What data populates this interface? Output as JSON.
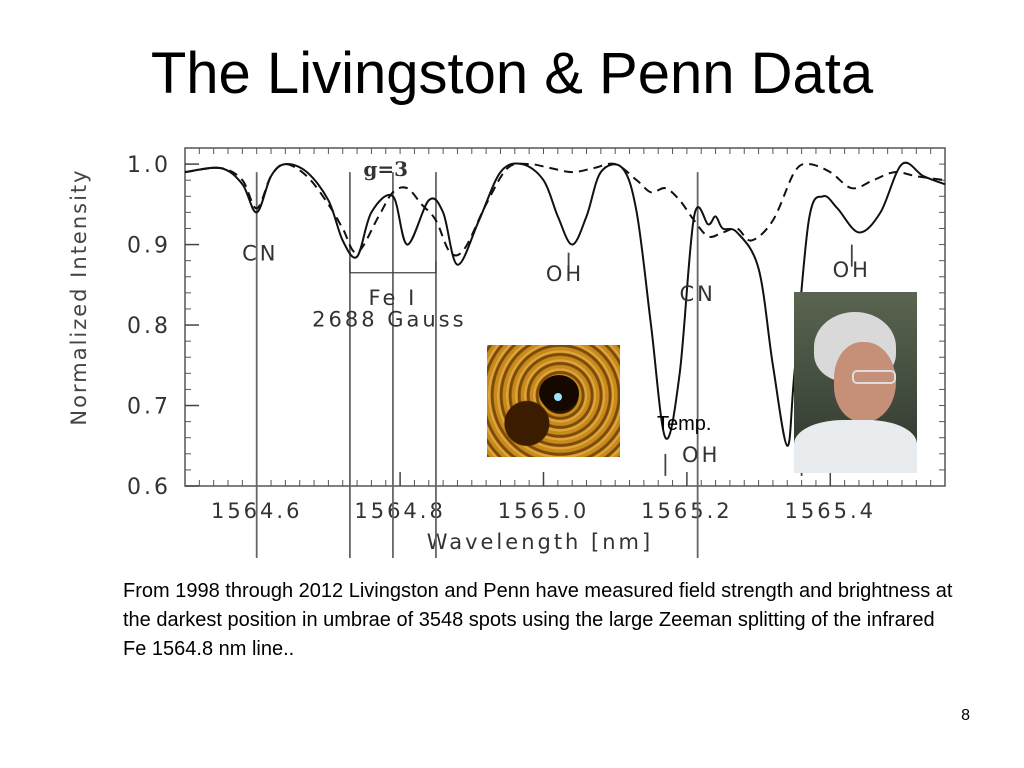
{
  "slide": {
    "title": "The Livingston & Penn Data",
    "caption": "From 1998 through 2012 Livingston and Penn have measured field strength and brightness at the darkest position in umbrae of 3548 spots using the large Zeeman splitting of the infrared Fe 1564.8 nm line..",
    "page_number": "8",
    "temp_label": "Temp."
  },
  "chart_data": {
    "type": "line",
    "xlabel": "Wavelength [nm]",
    "ylabel": "Normalized Intensity",
    "xlim": [
      1564.5,
      1565.56
    ],
    "ylim": [
      0.6,
      1.02
    ],
    "x_ticks": [
      "1564.6",
      "1564.8",
      "1565.0",
      "1565.2",
      "1565.4"
    ],
    "x_tick_values": [
      1564.6,
      1564.8,
      1565.0,
      1565.2,
      1565.4
    ],
    "y_ticks": [
      "0.6",
      "0.7",
      "0.8",
      "0.9",
      "1.0"
    ],
    "y_tick_values": [
      0.6,
      0.7,
      0.8,
      0.9,
      1.0
    ],
    "series": [
      {
        "style": "solid",
        "x": [
          1564.5,
          1564.55,
          1564.58,
          1564.6,
          1564.62,
          1564.64,
          1564.67,
          1564.7,
          1564.72,
          1564.74,
          1564.76,
          1564.79,
          1564.81,
          1564.84,
          1564.86,
          1564.88,
          1564.91,
          1564.94,
          1564.97,
          1565.0,
          1565.02,
          1565.04,
          1565.06,
          1565.08,
          1565.11,
          1565.13,
          1565.15,
          1565.17,
          1565.19,
          1565.21,
          1565.23,
          1565.24,
          1565.25,
          1565.27,
          1565.3,
          1565.32,
          1565.34,
          1565.35,
          1565.37,
          1565.39,
          1565.41,
          1565.44,
          1565.47,
          1565.5,
          1565.53,
          1565.56
        ],
        "y": [
          0.99,
          0.995,
          0.975,
          0.94,
          0.985,
          1.0,
          0.99,
          0.955,
          0.905,
          0.885,
          0.94,
          0.96,
          0.9,
          0.955,
          0.94,
          0.875,
          0.93,
          0.99,
          1.0,
          0.98,
          0.935,
          0.9,
          0.935,
          0.99,
          0.995,
          0.94,
          0.8,
          0.66,
          0.74,
          0.935,
          0.925,
          0.935,
          0.92,
          0.915,
          0.87,
          0.75,
          0.65,
          0.74,
          0.93,
          0.96,
          0.945,
          0.915,
          0.94,
          1.0,
          0.985,
          0.975
        ]
      },
      {
        "style": "dashed",
        "x": [
          1564.5,
          1564.55,
          1564.58,
          1564.6,
          1564.62,
          1564.64,
          1564.67,
          1564.7,
          1564.72,
          1564.74,
          1564.77,
          1564.79,
          1564.81,
          1564.83,
          1564.85,
          1564.87,
          1564.89,
          1564.92,
          1564.95,
          1564.98,
          1565.01,
          1565.04,
          1565.07,
          1565.1,
          1565.13,
          1565.15,
          1565.17,
          1565.19,
          1565.21,
          1565.23,
          1565.25,
          1565.27,
          1565.29,
          1565.32,
          1565.35,
          1565.37,
          1565.4,
          1565.43,
          1565.46,
          1565.49,
          1565.52,
          1565.56
        ],
        "y": [
          0.99,
          0.995,
          0.98,
          0.945,
          0.985,
          1.0,
          0.985,
          0.95,
          0.92,
          0.89,
          0.935,
          0.965,
          0.97,
          0.95,
          0.93,
          0.89,
          0.895,
          0.95,
          0.995,
          1.0,
          0.995,
          0.99,
          0.995,
          1.0,
          0.98,
          0.965,
          0.97,
          0.955,
          0.93,
          0.91,
          0.915,
          0.92,
          0.905,
          0.93,
          0.99,
          1.0,
          0.99,
          0.97,
          0.98,
          0.99,
          0.985,
          0.98
        ]
      }
    ],
    "vertical_lines_x": [
      1564.6,
      1564.73,
      1564.79,
      1564.85,
      1565.215
    ],
    "annotations": [
      {
        "text": "g=3",
        "x": 1564.78,
        "y": 0.985
      },
      {
        "text": "CN",
        "x": 1564.605,
        "y": 0.88
      },
      {
        "text": "Fe I",
        "x": 1564.79,
        "y": 0.825
      },
      {
        "text": "2688 Gauss",
        "x": 1564.785,
        "y": 0.798
      },
      {
        "text": "OH",
        "x": 1565.03,
        "y": 0.855
      },
      {
        "text": "CN",
        "x": 1565.215,
        "y": 0.83
      },
      {
        "text": "OH",
        "x": 1565.43,
        "y": 0.86
      },
      {
        "text": "OH",
        "x": 1565.22,
        "y": 0.63
      }
    ],
    "fe_bracket": {
      "x": [
        1564.73,
        1564.85
      ],
      "y": 0.865
    },
    "markers": [
      {
        "x": 1565.035,
        "y": 0.875
      },
      {
        "x": 1565.43,
        "y": 0.885
      },
      {
        "x": 1565.17,
        "y": 0.625
      },
      {
        "x": 1565.36,
        "y": 0.625
      }
    ]
  },
  "images": {
    "sunspot": "sunspot-image",
    "portrait": "portrait-photo"
  }
}
